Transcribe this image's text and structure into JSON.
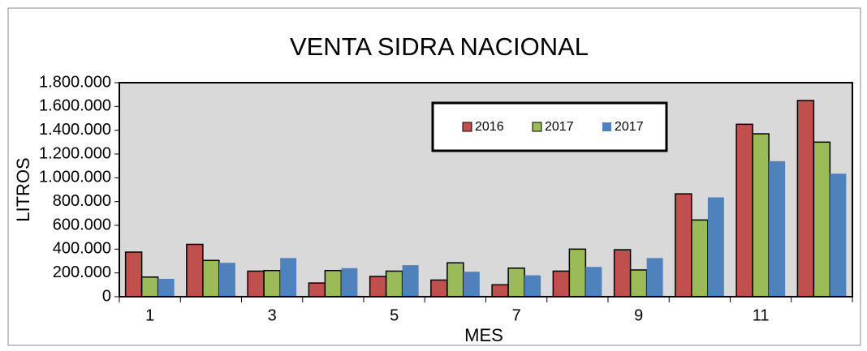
{
  "chart_data": {
    "type": "bar",
    "title": "VENTA SIDRA NACIONAL",
    "x_label": "MES",
    "y_label": "LITROS",
    "categories": [
      "1",
      null,
      "3",
      null,
      "5",
      null,
      "7",
      null,
      "9",
      null,
      "11",
      null
    ],
    "series": [
      {
        "name": "2016",
        "color": "#c0504d",
        "values": [
          375000,
          440000,
          215000,
          115000,
          170000,
          140000,
          100000,
          215000,
          395000,
          865000,
          1450000,
          1650000
        ]
      },
      {
        "name": "2017",
        "color": "#9bbb59",
        "values": [
          165000,
          305000,
          220000,
          220000,
          215000,
          285000,
          240000,
          400000,
          225000,
          645000,
          1370000,
          1300000
        ]
      },
      {
        "name": "2017",
        "color": "#4f81bd",
        "values": [
          150000,
          285000,
          325000,
          240000,
          265000,
          210000,
          180000,
          250000,
          325000,
          835000,
          1140000,
          1035000
        ]
      }
    ],
    "ylim": [
      0,
      1800000
    ],
    "yticks": [
      0,
      {
        "value": 200000,
        "label": "200.000"
      },
      {
        "value": 400000,
        "label": "400.000"
      },
      {
        "value": 600000,
        "label": "600.000"
      },
      {
        "value": 800000,
        "label": "800.000"
      },
      {
        "value": 1000000,
        "label": "1.000.000"
      },
      {
        "value": 1200000,
        "label": "1.200.000"
      },
      {
        "value": 1400000,
        "label": "1.400.000"
      },
      {
        "value": 1600000,
        "label": "1.600.000"
      },
      {
        "value": 1800000,
        "label": "1.800.000"
      }
    ],
    "legend": "top-center",
    "plot_background": "#d9d9d9"
  }
}
